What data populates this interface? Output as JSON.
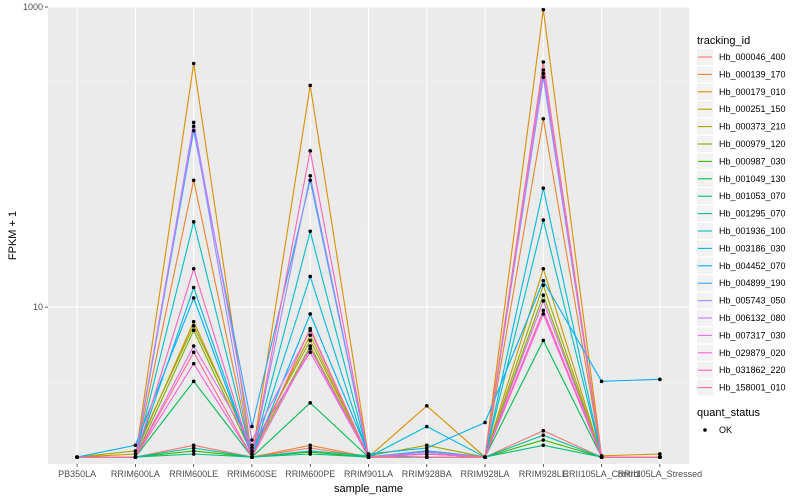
{
  "chart_data": {
    "type": "line",
    "xlabel": "sample_name",
    "ylabel": "FPKM + 1",
    "y_scale": "log10",
    "ylim": [
      0.9,
      1000
    ],
    "y_ticks": [
      10,
      1000
    ],
    "y_tick_labels": [
      "10",
      "1000"
    ],
    "categories": [
      "PB350LA",
      "RRIM600LA",
      "RRIM600LE",
      "RRIM600SE",
      "RRIM600PE",
      "RRIM901LA",
      "RRIM928BA",
      "RRIM928LA",
      "RRIM928LE",
      "RRII105LA_Control",
      "RRII105LA_Stressed"
    ],
    "legend_title": "tracking_id",
    "legend2_title": "quant_status",
    "legend2_label": "OK",
    "series": [
      {
        "name": "Hb_000046_400",
        "color": "#F8766D",
        "values": [
          1,
          1,
          1.2,
          1,
          1.15,
          1,
          1.05,
          1,
          1.5,
          1,
          1
        ]
      },
      {
        "name": "Hb_000139_170",
        "color": "#EA8331",
        "values": [
          1,
          1,
          70,
          1,
          1.2,
          1,
          1.08,
          1,
          180,
          1,
          1
        ]
      },
      {
        "name": "Hb_000179_010",
        "color": "#D89000",
        "values": [
          1,
          1,
          420,
          1,
          300,
          1,
          2.2,
          1,
          960,
          1.02,
          1.05
        ]
      },
      {
        "name": "Hb_000251_150",
        "color": "#C09B00",
        "values": [
          1,
          1.05,
          8,
          1.1,
          6.5,
          1,
          1.1,
          1,
          18,
          1,
          1
        ]
      },
      {
        "name": "Hb_000373_210",
        "color": "#A3A500",
        "values": [
          1,
          1.1,
          7.5,
          1.15,
          6,
          1.02,
          1.2,
          1,
          14,
          1,
          1
        ]
      },
      {
        "name": "Hb_000979_120",
        "color": "#7CAE00",
        "values": [
          1,
          1,
          7,
          1.05,
          5.5,
          1,
          1.1,
          1,
          12,
          1,
          1
        ]
      },
      {
        "name": "Hb_000987_030",
        "color": "#39B600",
        "values": [
          1,
          1,
          1.1,
          1,
          1.08,
          1,
          1,
          1,
          1.3,
          1,
          1
        ]
      },
      {
        "name": "Hb_001049_130",
        "color": "#00BB4E",
        "values": [
          1,
          1,
          3.2,
          1,
          2.3,
          1,
          1,
          1,
          6,
          1,
          1
        ]
      },
      {
        "name": "Hb_001053_070",
        "color": "#00BF7D",
        "values": [
          1,
          1,
          1.05,
          1,
          1.05,
          1,
          1,
          1,
          1.2,
          1,
          1
        ]
      },
      {
        "name": "Hb_001295_070",
        "color": "#00C1A3",
        "values": [
          1,
          1,
          1.15,
          1,
          1.1,
          1.02,
          1,
          1,
          1.4,
          1,
          1
        ]
      },
      {
        "name": "Hb_001936_100",
        "color": "#00BFC4",
        "values": [
          1,
          1,
          37,
          1,
          32,
          1,
          1.1,
          1,
          38,
          1,
          1
        ]
      },
      {
        "name": "Hb_003186_030",
        "color": "#00BAE0",
        "values": [
          1,
          1,
          13.5,
          1,
          16,
          1,
          1.6,
          1,
          62,
          1,
          1
        ]
      },
      {
        "name": "Hb_004452_070",
        "color": "#00B0F6",
        "values": [
          1,
          1.2,
          11.5,
          1,
          9,
          1.05,
          1.15,
          1.7,
          15,
          3.2,
          3.3
        ]
      },
      {
        "name": "Hb_004899_190",
        "color": "#35A2FF",
        "values": [
          1,
          1,
          150,
          1.6,
          70,
          1,
          1.1,
          1,
          360,
          1,
          1
        ]
      },
      {
        "name": "Hb_005743_050",
        "color": "#9590FF",
        "values": [
          1,
          1,
          160,
          1,
          75,
          1,
          1.08,
          1,
          340,
          1,
          1
        ]
      },
      {
        "name": "Hb_006132_080",
        "color": "#C77CFF",
        "values": [
          1,
          1,
          170,
          1.3,
          7,
          1,
          1.05,
          1,
          380,
          1,
          1
        ]
      },
      {
        "name": "Hb_007317_030",
        "color": "#E76BF3",
        "values": [
          1,
          1,
          5.5,
          1.2,
          5,
          1,
          1.05,
          1,
          11,
          1,
          1
        ]
      },
      {
        "name": "Hb_029879_020",
        "color": "#FA62DB",
        "values": [
          1,
          1,
          4.2,
          1,
          5.3,
          1,
          1,
          1,
          9,
          1,
          1
        ]
      },
      {
        "name": "Hb_031862_220",
        "color": "#FF62BC",
        "values": [
          1,
          1,
          18,
          1,
          110,
          1,
          1.05,
          1,
          9.5,
          1,
          1
        ]
      },
      {
        "name": "Hb_158001_010",
        "color": "#FF6C91",
        "values": [
          1,
          1,
          5,
          1,
          7.2,
          1,
          1,
          1,
          430,
          1,
          1
        ]
      }
    ]
  }
}
